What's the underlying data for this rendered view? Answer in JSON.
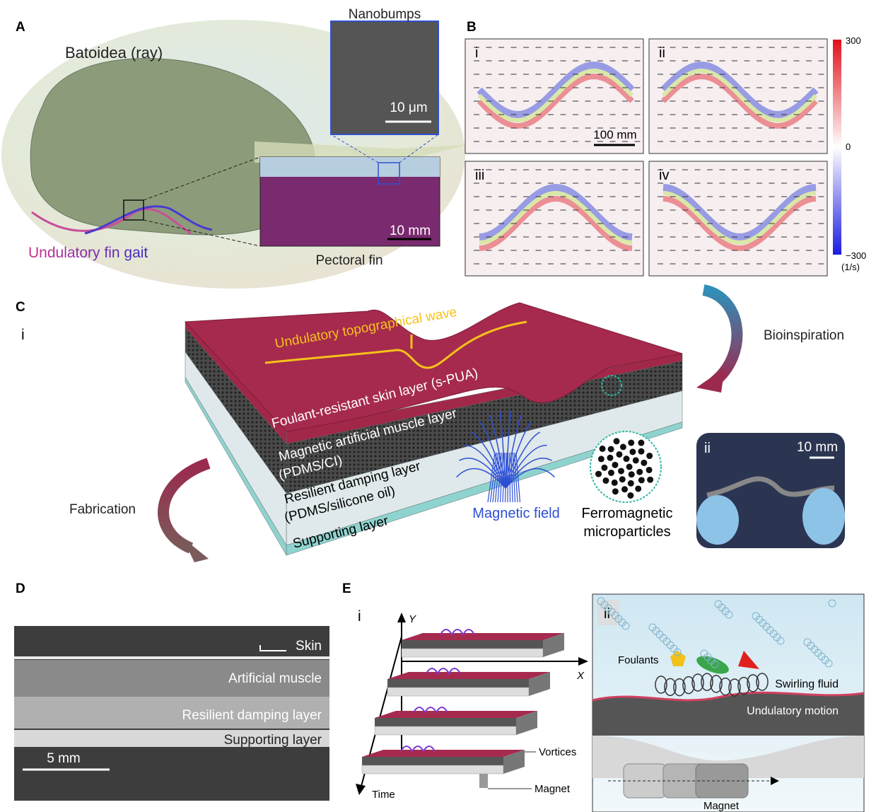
{
  "panel_a": {
    "label": "A",
    "title": "Batoidea (ray)",
    "inset_title": "Nanobumps",
    "inset_scale": "10 μm",
    "histology_scale": "10 mm",
    "gait": "Undulatory fin gait",
    "fin": "Pectoral fin"
  },
  "panel_b": {
    "label": "B",
    "subpanels": [
      "i",
      "ii",
      "iii",
      "iv"
    ],
    "scale": "100 mm",
    "colorbar": {
      "ticks": [
        "300",
        "0",
        "−300"
      ],
      "unit": "(1/s)"
    }
  },
  "panel_c": {
    "label": "C",
    "sub_i": "i",
    "wave": "Undulatory topographical wave",
    "skin": "Foulant-resistant skin layer (s-PUA)",
    "muscle": [
      "Magnetic artificial muscle layer",
      "(PDMS/CI)"
    ],
    "damping": [
      "Resilient damping layer",
      "(PDMS/silicone oil)"
    ],
    "support": "Supporting layer",
    "field": "Magnetic field",
    "particles": [
      "Ferromagnetic",
      "microparticles"
    ],
    "bio": "Bioinspiration",
    "fab": "Fabrication",
    "sub_ii": "ii",
    "photo_scale": "10 mm"
  },
  "panel_d": {
    "label": "D",
    "layers": [
      "Skin",
      "Artificial muscle",
      "Resilient damping layer",
      "Supporting layer"
    ],
    "scale": "5 mm"
  },
  "panel_e": {
    "label": "E",
    "sub_i": "i",
    "y_axis": "Y",
    "x_axis": "X",
    "time": "Time",
    "vortices": "Vortices",
    "magnet": "Magnet",
    "sub_ii": "ii",
    "foulants": "Foulants",
    "swirl": "Swirling fluid",
    "motion": "Undulatory motion",
    "magnet2": "Magnet"
  }
}
